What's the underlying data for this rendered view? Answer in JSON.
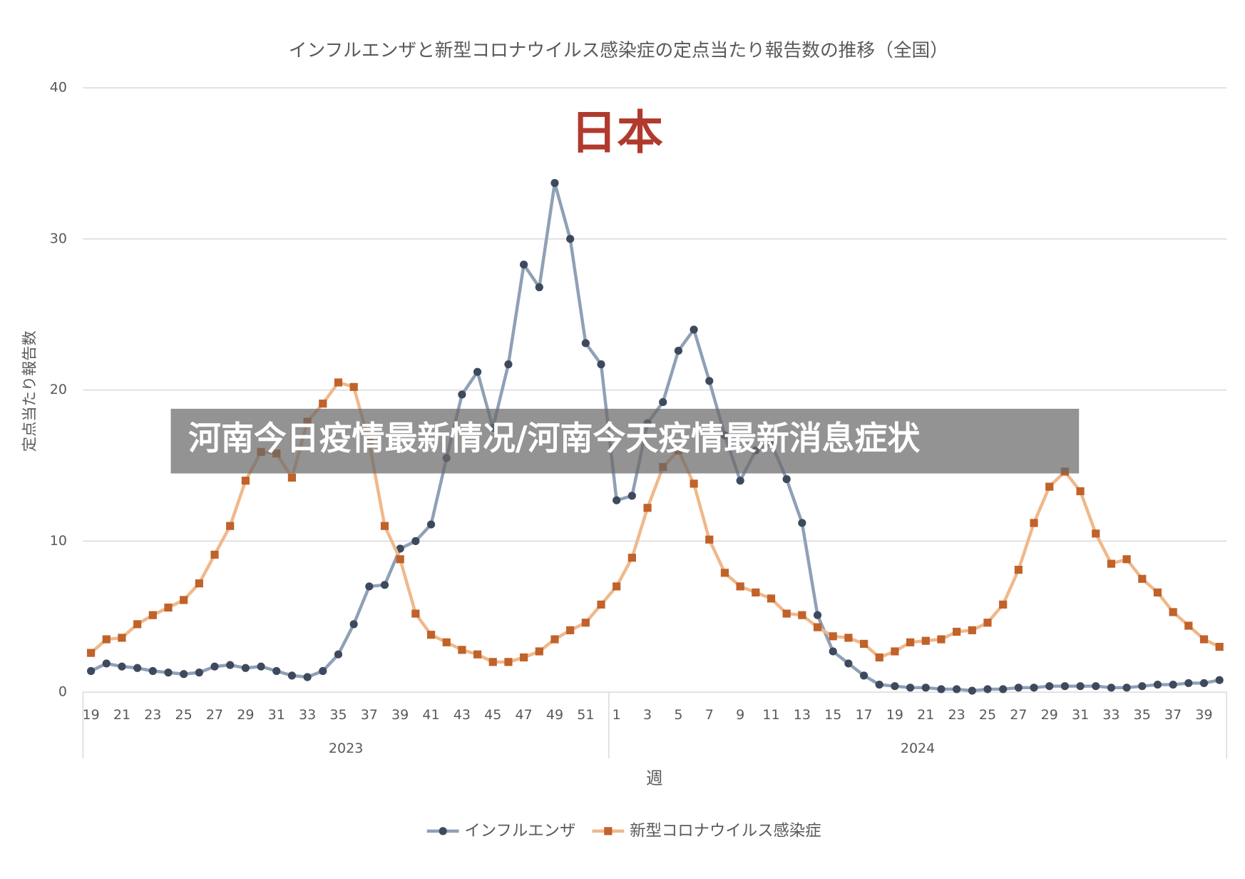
{
  "chart_data": {
    "type": "line",
    "title": "インフルエンザと新型コロナウイルス感染症の定点当たり報告数の推移（全国）",
    "annotation": "日本",
    "banner": "河南今日疫情最新情况/河南今天疫情最新消息症状",
    "y_label": "定点当たり報告数",
    "x_label": "週",
    "x_groups": [
      "2023",
      "2024"
    ],
    "categories": [
      "19",
      null,
      "21",
      null,
      "23",
      null,
      "25",
      null,
      "27",
      null,
      "29",
      null,
      "31",
      null,
      "33",
      null,
      "35",
      null,
      "37",
      null,
      "39",
      null,
      "41",
      null,
      "43",
      null,
      "45",
      null,
      "47",
      null,
      "49",
      null,
      "51",
      null,
      "1",
      null,
      "3",
      null,
      "5",
      null,
      "7",
      null,
      "9",
      null,
      "11",
      null,
      "13",
      null,
      "15",
      null,
      "17",
      null,
      "19",
      null,
      "21",
      null,
      "23",
      null,
      "25",
      null,
      "27",
      null,
      "29",
      null,
      "31",
      null,
      "33",
      null,
      "35",
      null,
      "37",
      null,
      "39",
      null
    ],
    "ylim": [
      0,
      40
    ],
    "yticks": [
      0,
      10,
      20,
      30,
      40
    ],
    "grid": true,
    "series": [
      {
        "name": "インフルエンザ",
        "color": "#8fa0b6",
        "marker_color": "#3d4a5e",
        "marker": "circle",
        "values": [
          1.4,
          1.9,
          1.7,
          1.6,
          1.4,
          1.3,
          1.2,
          1.3,
          1.7,
          1.8,
          1.6,
          1.7,
          1.4,
          1.1,
          1.0,
          1.4,
          2.5,
          4.5,
          7.0,
          7.1,
          9.5,
          10.0,
          11.1,
          15.5,
          19.7,
          21.2,
          17.5,
          21.7,
          28.3,
          26.8,
          33.7,
          30.0,
          23.1,
          21.7,
          12.7,
          13.0,
          17.8,
          19.2,
          22.6,
          24.0,
          20.6,
          17.0,
          14.0,
          16.0,
          16.5,
          14.1,
          11.2,
          5.1,
          2.7,
          1.9,
          1.1,
          0.5,
          0.4,
          0.3,
          0.3,
          0.2,
          0.2,
          0.1,
          0.2,
          0.2,
          0.3,
          0.3,
          0.4,
          0.4,
          0.4,
          0.4,
          0.3,
          0.3,
          0.4,
          0.5,
          0.5,
          0.6,
          0.6,
          0.8
        ]
      },
      {
        "name": "新型コロナウイルス感染症",
        "color": "#f0b88a",
        "marker_color": "#c0622a",
        "marker": "square",
        "values": [
          2.6,
          3.5,
          3.6,
          4.5,
          5.1,
          5.6,
          6.1,
          7.2,
          9.1,
          11.0,
          14.0,
          15.9,
          15.8,
          14.2,
          17.9,
          19.1,
          20.5,
          20.2,
          16.5,
          11.0,
          8.8,
          5.2,
          3.8,
          3.3,
          2.8,
          2.5,
          2.0,
          2.0,
          2.3,
          2.7,
          3.5,
          4.1,
          4.6,
          5.8,
          7.0,
          8.9,
          12.2,
          14.9,
          16.0,
          13.8,
          10.1,
          7.9,
          7.0,
          6.6,
          6.2,
          5.2,
          5.1,
          4.3,
          3.7,
          3.6,
          3.2,
          2.3,
          2.7,
          3.3,
          3.4,
          3.5,
          4.0,
          4.1,
          4.6,
          5.8,
          8.1,
          11.2,
          13.6,
          14.6,
          13.3,
          10.5,
          8.5,
          8.8,
          7.5,
          6.6,
          5.3,
          4.4,
          3.5,
          3.0
        ]
      }
    ]
  }
}
